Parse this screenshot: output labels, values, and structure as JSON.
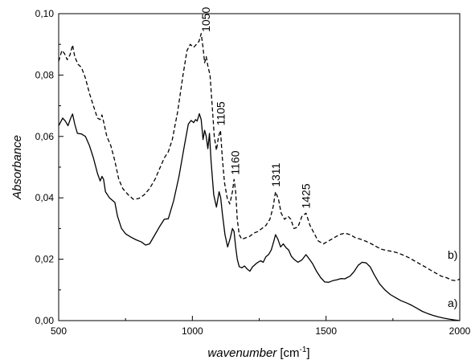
{
  "chart_data": {
    "type": "line",
    "title": "",
    "xlabel": "wavenumber",
    "xlabel_unit_prefix": "[cm",
    "xlabel_unit_sup": "-1",
    "xlabel_unit_suffix": "]",
    "ylabel": "Absorbance",
    "xlim": [
      500,
      2000
    ],
    "ylim": [
      0.0,
      0.1
    ],
    "grid": false,
    "legend": "none",
    "x_ticks": [
      {
        "value": 500,
        "label": "500"
      },
      {
        "value": 1000,
        "label": "1000"
      },
      {
        "value": 1500,
        "label": "1500"
      },
      {
        "value": 2000,
        "label": "2000"
      }
    ],
    "y_ticks": [
      {
        "value": 0.0,
        "label": "0,00"
      },
      {
        "value": 0.02,
        "label": "0,02"
      },
      {
        "value": 0.04,
        "label": "0,04"
      },
      {
        "value": 0.06,
        "label": "0,06"
      },
      {
        "value": 0.08,
        "label": "0,08"
      },
      {
        "value": 0.1,
        "label": "0,10"
      }
    ],
    "series": [
      {
        "name": "a)",
        "style": "solid",
        "color": "#000000",
        "points": [
          [
            500,
            0.0635
          ],
          [
            515,
            0.066
          ],
          [
            525,
            0.065
          ],
          [
            535,
            0.0635
          ],
          [
            545,
            0.066
          ],
          [
            552,
            0.0673
          ],
          [
            560,
            0.064
          ],
          [
            570,
            0.061
          ],
          [
            585,
            0.0608
          ],
          [
            600,
            0.06
          ],
          [
            615,
            0.057
          ],
          [
            630,
            0.053
          ],
          [
            645,
            0.048
          ],
          [
            655,
            0.0455
          ],
          [
            662,
            0.047
          ],
          [
            668,
            0.046
          ],
          [
            675,
            0.042
          ],
          [
            690,
            0.04
          ],
          [
            710,
            0.0385
          ],
          [
            720,
            0.034
          ],
          [
            735,
            0.03
          ],
          [
            750,
            0.0283
          ],
          [
            770,
            0.0272
          ],
          [
            790,
            0.0263
          ],
          [
            810,
            0.0256
          ],
          [
            825,
            0.0246
          ],
          [
            840,
            0.025
          ],
          [
            860,
            0.028
          ],
          [
            880,
            0.031
          ],
          [
            895,
            0.033
          ],
          [
            910,
            0.0332
          ],
          [
            930,
            0.039
          ],
          [
            950,
            0.047
          ],
          [
            970,
            0.057
          ],
          [
            985,
            0.064
          ],
          [
            995,
            0.0652
          ],
          [
            1005,
            0.0645
          ],
          [
            1012,
            0.0655
          ],
          [
            1018,
            0.065
          ],
          [
            1026,
            0.0674
          ],
          [
            1033,
            0.0655
          ],
          [
            1040,
            0.059
          ],
          [
            1046,
            0.062
          ],
          [
            1052,
            0.06
          ],
          [
            1058,
            0.056
          ],
          [
            1064,
            0.061
          ],
          [
            1070,
            0.052
          ],
          [
            1080,
            0.041
          ],
          [
            1090,
            0.037
          ],
          [
            1100,
            0.042
          ],
          [
            1106,
            0.04
          ],
          [
            1112,
            0.035
          ],
          [
            1122,
            0.028
          ],
          [
            1132,
            0.024
          ],
          [
            1142,
            0.027
          ],
          [
            1150,
            0.03
          ],
          [
            1156,
            0.029
          ],
          [
            1162,
            0.024
          ],
          [
            1168,
            0.02
          ],
          [
            1175,
            0.0176
          ],
          [
            1185,
            0.0172
          ],
          [
            1195,
            0.0178
          ],
          [
            1205,
            0.0168
          ],
          [
            1215,
            0.0161
          ],
          [
            1225,
            0.0175
          ],
          [
            1240,
            0.0187
          ],
          [
            1255,
            0.0195
          ],
          [
            1265,
            0.019
          ],
          [
            1275,
            0.0208
          ],
          [
            1285,
            0.0215
          ],
          [
            1295,
            0.023
          ],
          [
            1305,
            0.026
          ],
          [
            1311,
            0.028
          ],
          [
            1320,
            0.0265
          ],
          [
            1330,
            0.024
          ],
          [
            1340,
            0.025
          ],
          [
            1350,
            0.0238
          ],
          [
            1360,
            0.023
          ],
          [
            1370,
            0.021
          ],
          [
            1380,
            0.02
          ],
          [
            1395,
            0.019
          ],
          [
            1410,
            0.0198
          ],
          [
            1425,
            0.0215
          ],
          [
            1438,
            0.02
          ],
          [
            1450,
            0.0185
          ],
          [
            1465,
            0.016
          ],
          [
            1480,
            0.014
          ],
          [
            1495,
            0.0126
          ],
          [
            1510,
            0.0125
          ],
          [
            1525,
            0.013
          ],
          [
            1540,
            0.0133
          ],
          [
            1555,
            0.0137
          ],
          [
            1570,
            0.0136
          ],
          [
            1590,
            0.0145
          ],
          [
            1605,
            0.016
          ],
          [
            1620,
            0.018
          ],
          [
            1635,
            0.019
          ],
          [
            1650,
            0.0188
          ],
          [
            1665,
            0.0175
          ],
          [
            1680,
            0.015
          ],
          [
            1700,
            0.012
          ],
          [
            1720,
            0.01
          ],
          [
            1740,
            0.0085
          ],
          [
            1760,
            0.0075
          ],
          [
            1780,
            0.0065
          ],
          [
            1800,
            0.0058
          ],
          [
            1820,
            0.005
          ],
          [
            1840,
            0.004
          ],
          [
            1860,
            0.003
          ],
          [
            1880,
            0.0023
          ],
          [
            1900,
            0.0017
          ],
          [
            1920,
            0.0012
          ],
          [
            1940,
            0.0008
          ],
          [
            1960,
            0.0005
          ],
          [
            1980,
            0.0002
          ],
          [
            2000,
            0.0
          ]
        ]
      },
      {
        "name": "b)",
        "style": "dashed",
        "color": "#000000",
        "points": [
          [
            500,
            0.0845
          ],
          [
            512,
            0.088
          ],
          [
            522,
            0.087
          ],
          [
            532,
            0.085
          ],
          [
            542,
            0.0865
          ],
          [
            552,
            0.0898
          ],
          [
            560,
            0.086
          ],
          [
            572,
            0.0835
          ],
          [
            585,
            0.0825
          ],
          [
            600,
            0.079
          ],
          [
            615,
            0.074
          ],
          [
            630,
            0.07
          ],
          [
            645,
            0.066
          ],
          [
            655,
            0.0655
          ],
          [
            662,
            0.067
          ],
          [
            670,
            0.064
          ],
          [
            680,
            0.06
          ],
          [
            695,
            0.057
          ],
          [
            710,
            0.052
          ],
          [
            725,
            0.046
          ],
          [
            740,
            0.043
          ],
          [
            760,
            0.041
          ],
          [
            780,
            0.0395
          ],
          [
            800,
            0.0398
          ],
          [
            820,
            0.041
          ],
          [
            840,
            0.043
          ],
          [
            860,
            0.046
          ],
          [
            880,
            0.05
          ],
          [
            895,
            0.053
          ],
          [
            910,
            0.055
          ],
          [
            925,
            0.059
          ],
          [
            945,
            0.068
          ],
          [
            965,
            0.08
          ],
          [
            980,
            0.088
          ],
          [
            992,
            0.09
          ],
          [
            1005,
            0.089
          ],
          [
            1015,
            0.09
          ],
          [
            1025,
            0.091
          ],
          [
            1033,
            0.0935
          ],
          [
            1040,
            0.089
          ],
          [
            1046,
            0.084
          ],
          [
            1052,
            0.086
          ],
          [
            1058,
            0.083
          ],
          [
            1066,
            0.08
          ],
          [
            1074,
            0.07
          ],
          [
            1082,
            0.06
          ],
          [
            1090,
            0.0555
          ],
          [
            1098,
            0.06
          ],
          [
            1105,
            0.062
          ],
          [
            1112,
            0.053
          ],
          [
            1120,
            0.045
          ],
          [
            1130,
            0.04
          ],
          [
            1140,
            0.038
          ],
          [
            1150,
            0.042
          ],
          [
            1156,
            0.046
          ],
          [
            1162,
            0.042
          ],
          [
            1168,
            0.033
          ],
          [
            1175,
            0.028
          ],
          [
            1185,
            0.0265
          ],
          [
            1200,
            0.027
          ],
          [
            1215,
            0.0275
          ],
          [
            1230,
            0.0285
          ],
          [
            1245,
            0.029
          ],
          [
            1260,
            0.03
          ],
          [
            1275,
            0.031
          ],
          [
            1290,
            0.033
          ],
          [
            1302,
            0.037
          ],
          [
            1311,
            0.042
          ],
          [
            1322,
            0.0395
          ],
          [
            1332,
            0.035
          ],
          [
            1345,
            0.033
          ],
          [
            1358,
            0.034
          ],
          [
            1368,
            0.033
          ],
          [
            1380,
            0.03
          ],
          [
            1395,
            0.0305
          ],
          [
            1410,
            0.034
          ],
          [
            1425,
            0.035
          ],
          [
            1440,
            0.031
          ],
          [
            1455,
            0.0285
          ],
          [
            1470,
            0.026
          ],
          [
            1490,
            0.025
          ],
          [
            1510,
            0.026
          ],
          [
            1530,
            0.027
          ],
          [
            1550,
            0.028
          ],
          [
            1570,
            0.0285
          ],
          [
            1590,
            0.028
          ],
          [
            1610,
            0.027
          ],
          [
            1630,
            0.0265
          ],
          [
            1650,
            0.0258
          ],
          [
            1670,
            0.025
          ],
          [
            1690,
            0.024
          ],
          [
            1710,
            0.0232
          ],
          [
            1730,
            0.0228
          ],
          [
            1750,
            0.0225
          ],
          [
            1770,
            0.022
          ],
          [
            1790,
            0.0213
          ],
          [
            1810,
            0.0205
          ],
          [
            1830,
            0.0195
          ],
          [
            1850,
            0.0185
          ],
          [
            1870,
            0.0175
          ],
          [
            1890,
            0.0165
          ],
          [
            1910,
            0.0155
          ],
          [
            1930,
            0.0145
          ],
          [
            1950,
            0.014
          ],
          [
            1970,
            0.0132
          ],
          [
            1985,
            0.013
          ],
          [
            2000,
            0.0135
          ]
        ]
      }
    ],
    "series_labels": [
      {
        "text": "a)",
        "x": 1955,
        "y": 0.0057
      },
      {
        "text": "b)",
        "x": 1955,
        "y": 0.0215
      }
    ],
    "peak_annotations": [
      {
        "label": "1050",
        "x": 1050,
        "y": 0.094
      },
      {
        "label": "1105",
        "x": 1105,
        "y": 0.0635
      },
      {
        "label": "1160",
        "x": 1160,
        "y": 0.0475
      },
      {
        "label": "1311",
        "x": 1311,
        "y": 0.0435
      },
      {
        "label": "1425",
        "x": 1425,
        "y": 0.0365
      }
    ]
  }
}
